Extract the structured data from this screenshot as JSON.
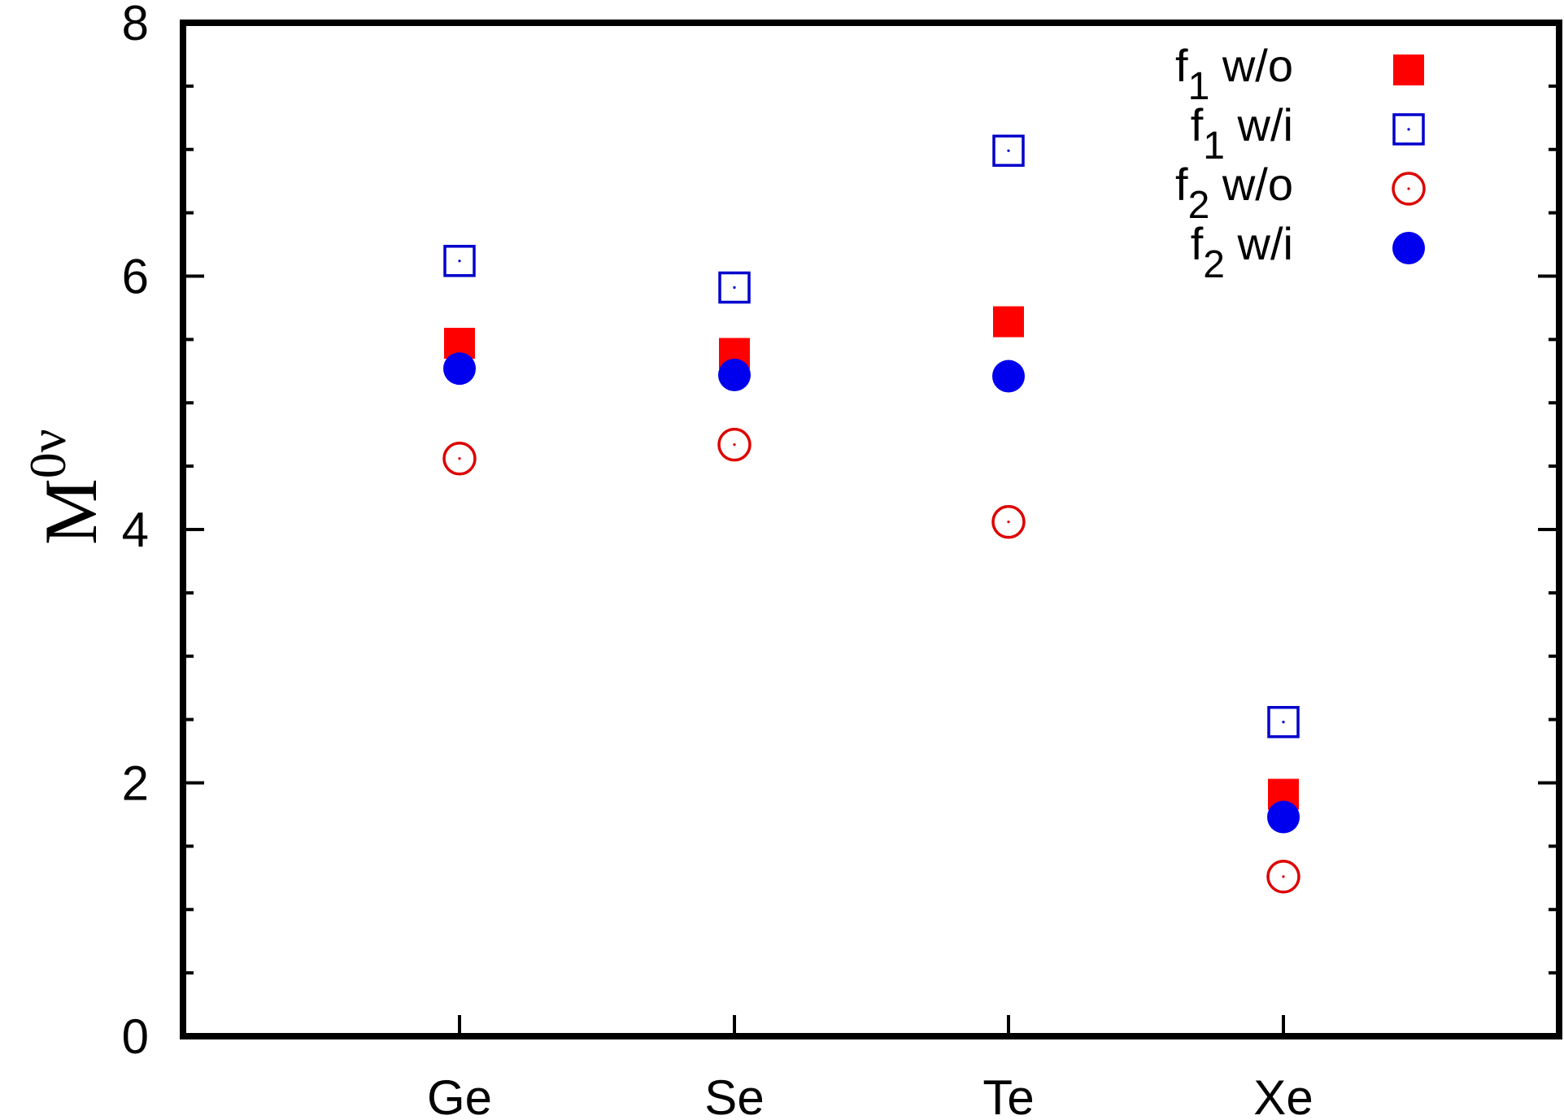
{
  "chart_data": {
    "type": "scatter",
    "categories": [
      "Ge",
      "Se",
      "Te",
      "Xe"
    ],
    "ylabel": "M",
    "ylabel_superscript": "0ν",
    "ylim": [
      0,
      8
    ],
    "yticks": [
      "0",
      "2",
      "4",
      "6",
      "8"
    ],
    "grid": false,
    "legend_position": "top-right",
    "series": [
      {
        "name": "f1 w/o",
        "label_main": "f",
        "label_sub": "1",
        "label_rest": "w/o",
        "marker": "filled-square",
        "color": "#ff0000",
        "values": [
          5.47,
          5.39,
          5.64,
          1.91
        ]
      },
      {
        "name": "f1 w/i",
        "label_main": "f",
        "label_sub": "1",
        "label_rest": "w/i",
        "marker": "open-square",
        "color": "#0000cc",
        "values": [
          6.12,
          5.91,
          6.99,
          2.48
        ]
      },
      {
        "name": "f2 w/o",
        "label_main": "f",
        "label_sub": "2",
        "label_rest": "w/o",
        "marker": "open-circle",
        "color": "#dd0000",
        "values": [
          4.56,
          4.67,
          4.06,
          1.26
        ]
      },
      {
        "name": "f2 w/i",
        "label_main": "f",
        "label_sub": "2",
        "label_rest": "w/i",
        "marker": "filled-circle",
        "color": "#0000ee",
        "values": [
          5.27,
          5.22,
          5.21,
          1.73
        ]
      }
    ]
  }
}
